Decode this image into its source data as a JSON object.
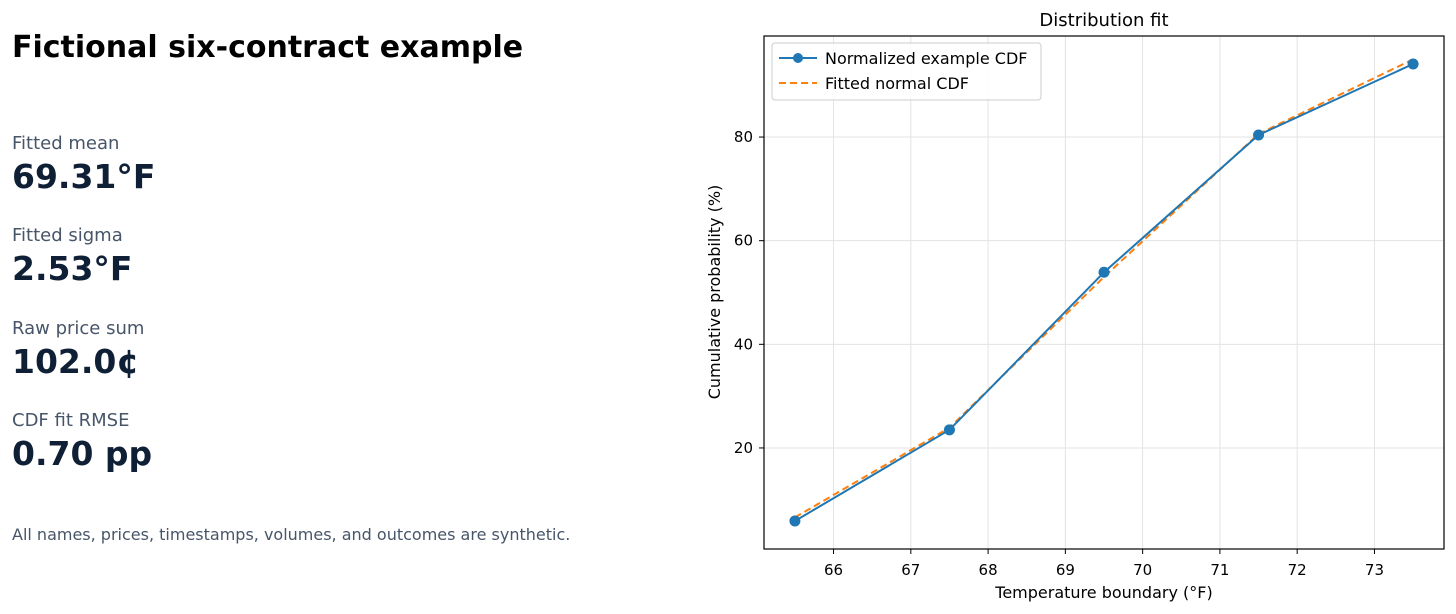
{
  "title": "Fictional six-contract example",
  "metrics": [
    {
      "label": "Fitted mean",
      "value": "69.31°F"
    },
    {
      "label": "Fitted sigma",
      "value": "2.53°F"
    },
    {
      "label": "Raw price sum",
      "value": "102.0¢"
    },
    {
      "label": "CDF fit RMSE",
      "value": "0.70 pp"
    }
  ],
  "footnote": "All names, prices, timestamps, volumes, and outcomes are synthetic.",
  "chart_data": {
    "type": "line",
    "title": "Distribution fit",
    "xlabel": "Temperature boundary (°F)",
    "ylabel": "Cumulative probability (%)",
    "xlim": [
      65.1,
      73.9
    ],
    "ylim": [
      0.5,
      99.5
    ],
    "xticks": [
      66,
      67,
      68,
      69,
      70,
      71,
      72,
      73
    ],
    "yticks": [
      20,
      40,
      60,
      80
    ],
    "grid": true,
    "legend_position": "top-left",
    "series": [
      {
        "name": "Normalized example CDF",
        "x": [
          65.5,
          67.5,
          69.5,
          71.5,
          73.5
        ],
        "y": [
          5.9,
          23.5,
          53.9,
          80.4,
          94.1
        ],
        "color": "#1f77b4",
        "style": "solid",
        "marker": "circle"
      },
      {
        "name": "Fitted normal CDF",
        "x": [
          65.5,
          67.5,
          69.5,
          71.5,
          73.5
        ],
        "y": [
          6.6,
          23.9,
          53.0,
          80.6,
          95.0
        ],
        "color": "#ff7f0e",
        "style": "dashed",
        "marker": "none"
      }
    ]
  }
}
